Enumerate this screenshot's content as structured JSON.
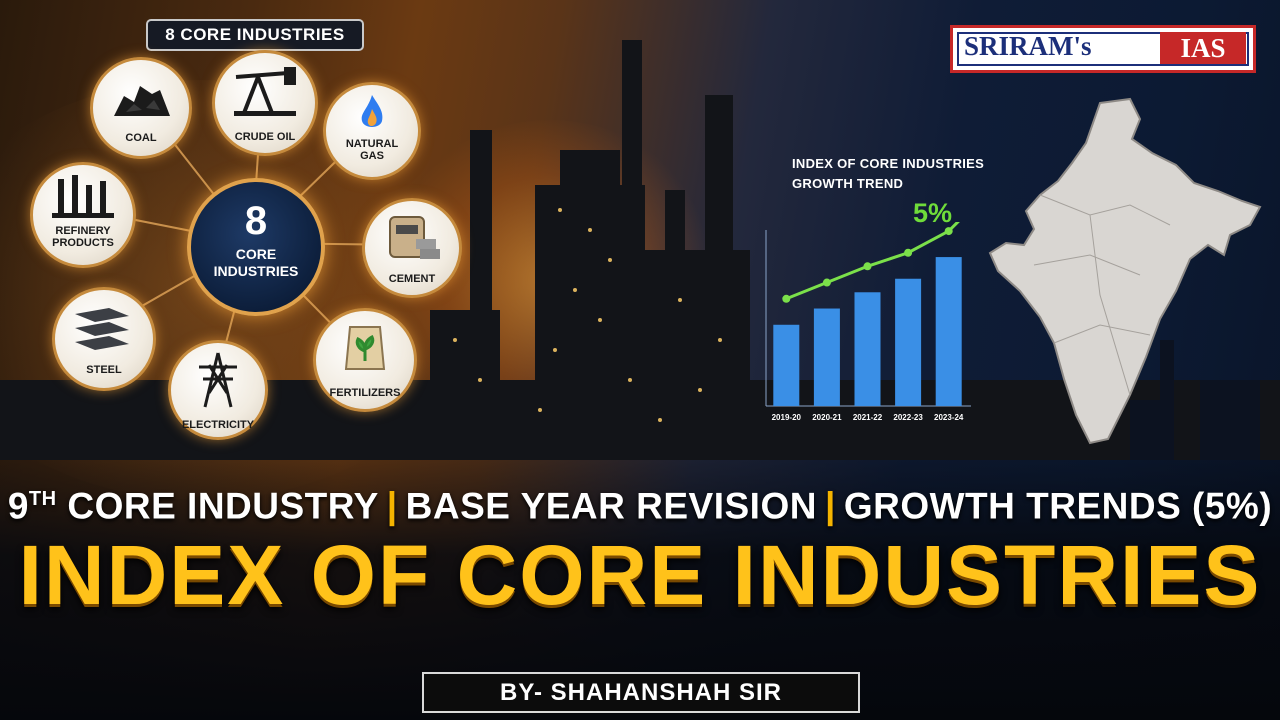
{
  "badge": {
    "title": "8 CORE INDUSTRIES"
  },
  "hub": {
    "number": "8",
    "line1": "CORE",
    "line2": "INDUSTRIES"
  },
  "industries": [
    {
      "label": "COAL",
      "icon": "coal-icon"
    },
    {
      "label": "CRUDE OIL",
      "icon": "oil-pump-icon"
    },
    {
      "label": "NATURAL",
      "label2": "GAS",
      "icon": "gas-flame-icon"
    },
    {
      "label": "REFINERY",
      "label2": "PRODUCTS",
      "icon": "refinery-icon"
    },
    {
      "label": "CEMENT",
      "icon": "cement-bag-icon"
    },
    {
      "label": "STEEL",
      "icon": "steel-beam-icon"
    },
    {
      "label": "ELECTRICITY",
      "icon": "power-tower-icon"
    },
    {
      "label": "FERTILIZERS",
      "icon": "fertilizer-bag-icon"
    }
  ],
  "logo": {
    "part1": "SRIRAM's",
    "part2": "IAS"
  },
  "chart_data": {
    "type": "bar",
    "title": "INDEX OF CORE INDUSTRIES",
    "subtitle": "GROWTH TREND",
    "categories": [
      "2019-20",
      "2020-21",
      "2021-22",
      "2022-23",
      "2023-24"
    ],
    "values": [
      3.0,
      3.6,
      4.2,
      4.7,
      5.5
    ],
    "ylim": [
      0,
      6.5
    ],
    "trend_annotation": "5%",
    "colors": {
      "bar": "#3a8fe6",
      "trend": "#7be04a"
    }
  },
  "subtitle": {
    "part1": "9",
    "part1_sup": "TH",
    "part1_rest": " CORE INDUSTRY",
    "part2": "BASE YEAR REVISION",
    "part3": "GROWTH TRENDS (5%)"
  },
  "headline": "INDEX OF CORE INDUSTRIES",
  "byline": "BY- SHAHANSHAH SIR"
}
